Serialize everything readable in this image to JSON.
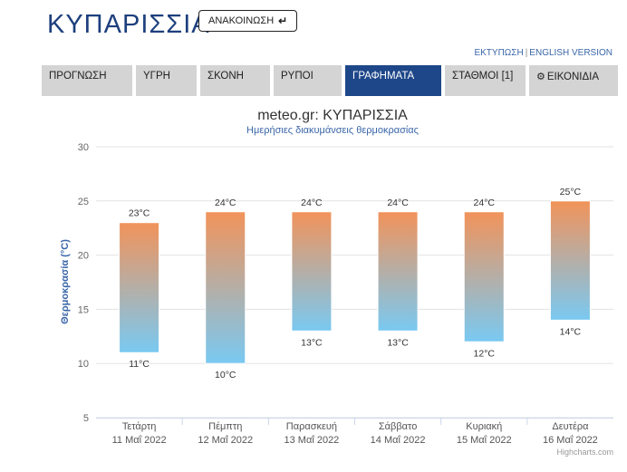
{
  "header": {
    "title": "ΚΥΠΑΡΙΣΣΙΑ",
    "announce_label": "ΑΝΑΚΟΙΝΩΣΗ",
    "announce_icon": "arrow-return-icon"
  },
  "links": {
    "print": "ΕΚΤΥΠΩΣΗ",
    "separator": "|",
    "english": "ENGLISH VERSION"
  },
  "tabs": [
    {
      "label": "ΠΡΟΓΝΩΣΗ",
      "active": false
    },
    {
      "label": "ΥΓΡΗ",
      "active": false
    },
    {
      "label": "ΣΚΟΝΗ",
      "active": false
    },
    {
      "label": "ΡΥΠΟΙ",
      "active": false
    },
    {
      "label": "ΓΡΑΦΗΜΑΤΑ",
      "active": true
    },
    {
      "label": "ΣΤΑΘΜΟΙ [1]",
      "active": false
    },
    {
      "label": "ΕΙΚΟΝΙΔΙΑ",
      "active": false,
      "icon": "gear-icon"
    }
  ],
  "colors": {
    "tab_active": "#1e4789",
    "tab_inactive": "#d4d4d4",
    "bar_top": "#f2935a",
    "bar_bottom": "#79c9f2",
    "title_blue": "#1d3f7d"
  },
  "chart_data": {
    "type": "bar",
    "subtype": "columnrange",
    "title": "meteo.gr: ΚΥΠΑΡΙΣΣΙΑ",
    "subtitle": "Ημερήσιες διακυμάνσεις θερμοκρασίας",
    "ylabel": "Θερμοκρασία (°C)",
    "ylim": [
      5,
      30
    ],
    "yticks": [
      "5",
      "10",
      "15",
      "20",
      "25",
      "30"
    ],
    "grid": true,
    "unit": "°C",
    "categories": [
      {
        "day": "Τετάρτη",
        "date": "11 Μαΐ 2022"
      },
      {
        "day": "Πέμπτη",
        "date": "12 Μαΐ 2022"
      },
      {
        "day": "Παρασκευή",
        "date": "13 Μαΐ 2022"
      },
      {
        "day": "Σάββατο",
        "date": "14 Μαΐ 2022"
      },
      {
        "day": "Κυριακή",
        "date": "15 Μαΐ 2022"
      },
      {
        "day": "Δευτέρα",
        "date": "16 Μαΐ 2022"
      }
    ],
    "min": [
      11,
      10,
      13,
      13,
      12,
      14
    ],
    "max": [
      23,
      24,
      24,
      24,
      24,
      25
    ],
    "min_labels": [
      "11°C",
      "10°C",
      "13°C",
      "13°C",
      "12°C",
      "14°C"
    ],
    "max_labels": [
      "23°C",
      "24°C",
      "24°C",
      "24°C",
      "24°C",
      "25°C"
    ],
    "credits": "Highcharts.com"
  }
}
